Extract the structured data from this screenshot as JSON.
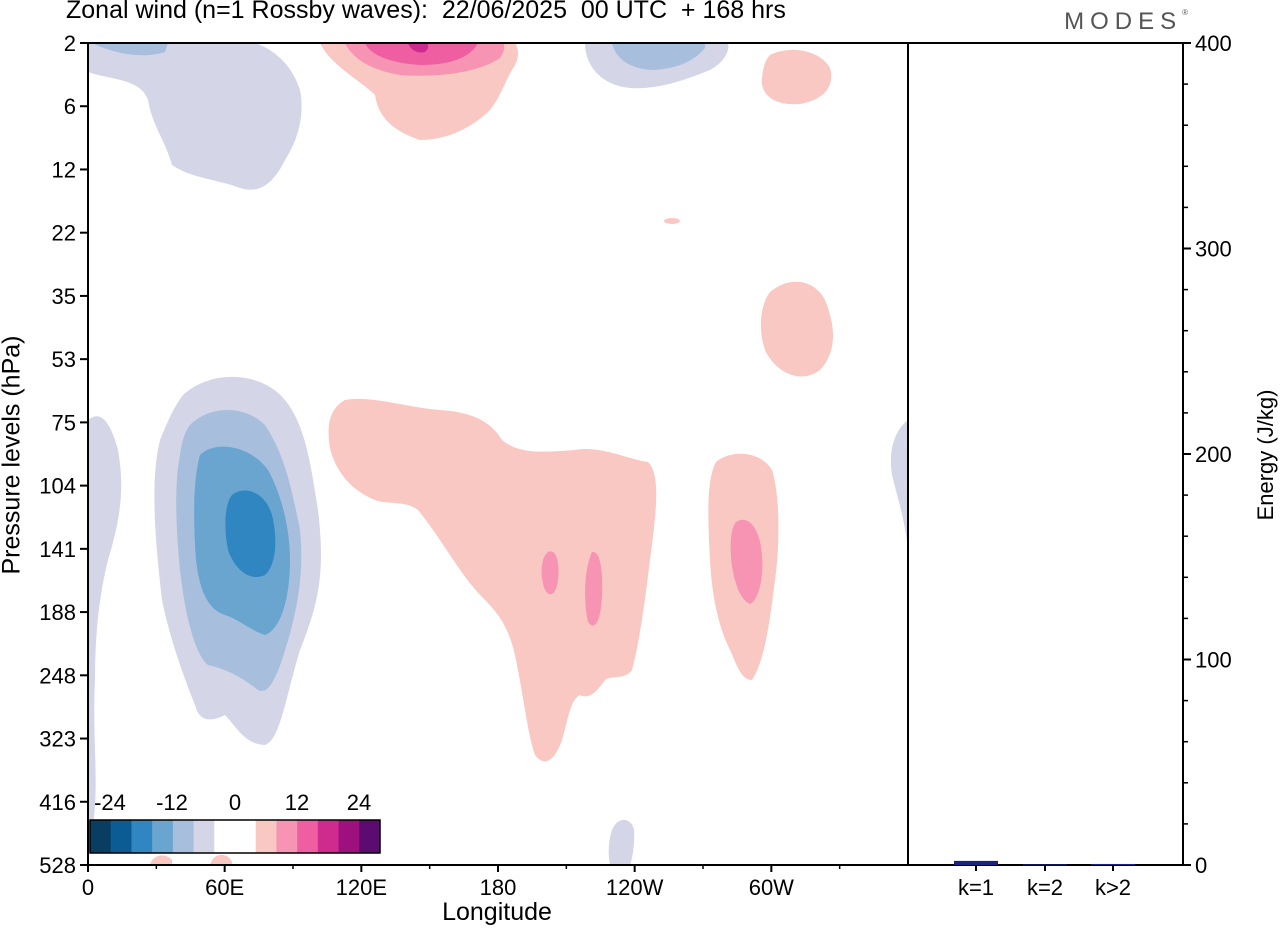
{
  "header": {
    "title": "Zonal wind (n=1 Rossby waves):  22/06/2025  00 UTC  + 168 hrs",
    "logo": "MODES",
    "logo_mark": "®"
  },
  "chart_data": [
    {
      "type": "contour",
      "title": "Zonal wind (n=1 Rossby waves):  22/06/2025  00 UTC  + 168 hrs",
      "xlabel": "Longitude",
      "ylabel": "Pressure levels (hPa)",
      "x_ticks": [
        "0",
        "60E",
        "120E",
        "180",
        "120W",
        "60W"
      ],
      "y_ticks": [
        "2",
        "6",
        "12",
        "22",
        "35",
        "53",
        "75",
        "104",
        "141",
        "188",
        "248",
        "323",
        "416",
        "528"
      ],
      "colorbar": {
        "tick_labels": [
          "-24",
          "-12",
          "0",
          "12",
          "24"
        ],
        "colors": [
          "#0a3d62",
          "#0b5c94",
          "#2f86c0",
          "#6aa5d0",
          "#a7bfdc",
          "#d4d6e8",
          "#ffffff",
          "#ffffff",
          "#f9c8c3",
          "#f794b4",
          "#ee5ea1",
          "#cf2b8e",
          "#9e107e",
          "#5c0b70"
        ]
      }
    },
    {
      "type": "bar",
      "ylabel": "Energy (J/kg)",
      "ylim": [
        0,
        400
      ],
      "y_ticks": [
        "0",
        "100",
        "200",
        "300",
        "400"
      ],
      "categories": [
        "k=1",
        "k=2",
        "k>2"
      ],
      "values": [
        2,
        0.3,
        0.5
      ],
      "bar_color": "#1a237e"
    }
  ]
}
